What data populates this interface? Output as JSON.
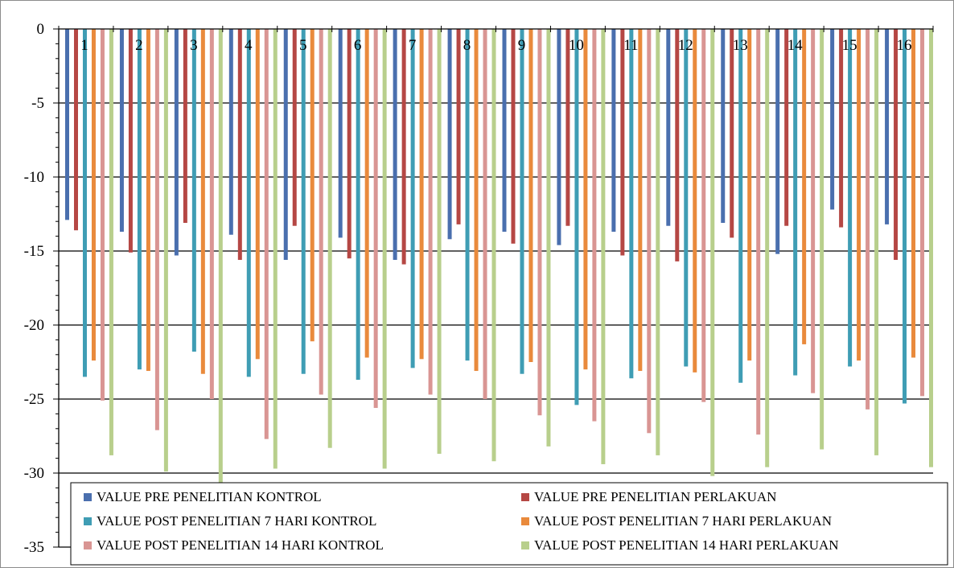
{
  "chart_data": {
    "type": "bar",
    "title": "",
    "xlabel": "",
    "ylabel": "",
    "ylim": [
      -35,
      0
    ],
    "y_ticks": [
      "0",
      "-5",
      "-10",
      "-15",
      "-20",
      "-25",
      "-30",
      "-35"
    ],
    "grid": true,
    "legend_position": "bottom",
    "categories": [
      "1",
      "2",
      "3",
      "4",
      "5",
      "6",
      "7",
      "8",
      "9",
      "10",
      "11",
      "12",
      "13",
      "14",
      "15",
      "16"
    ],
    "series": [
      {
        "name": "VALUE PRE PENELITIAN KONTROL",
        "color": "#4a6fae",
        "values": [
          -12.9,
          -13.7,
          -15.3,
          -13.9,
          -15.6,
          -14.1,
          -15.6,
          -14.2,
          -13.7,
          -14.6,
          -13.7,
          -13.3,
          -13.1,
          -15.2,
          -12.2,
          -13.2
        ]
      },
      {
        "name": "VALUE PRE PENELITIAN PERLAKUAN",
        "color": "#b54744",
        "values": [
          -13.6,
          -15.1,
          -13.1,
          -15.6,
          -13.3,
          -15.5,
          -15.9,
          -13.2,
          -14.5,
          -13.3,
          -15.3,
          -15.7,
          -14.1,
          -13.3,
          -13.4,
          -15.6
        ]
      },
      {
        "name": "VALUE POST PENELITIAN 7 HARI KONTROL",
        "color": "#3f9db4",
        "values": [
          -23.5,
          -23.0,
          -21.8,
          -23.5,
          -23.3,
          -23.7,
          -22.9,
          -22.4,
          -23.3,
          -25.4,
          -23.6,
          -22.8,
          -23.9,
          -23.4,
          -22.8,
          -25.3
        ]
      },
      {
        "name": "VALUE POST PENELITIAN 7 HARI PERLAKUAN",
        "color": "#e98a3c",
        "values": [
          -22.4,
          -23.1,
          -23.3,
          -22.3,
          -21.1,
          -22.2,
          -22.3,
          -23.1,
          -22.5,
          -23.0,
          -23.1,
          -23.2,
          -22.4,
          -21.3,
          -22.4,
          -22.2
        ]
      },
      {
        "name": "VALUE POST PENELITIAN 14 HARI KONTROL",
        "color": "#d99593",
        "values": [
          -25.1,
          -27.1,
          -25.0,
          -27.7,
          -24.7,
          -25.6,
          -24.7,
          -25.0,
          -26.1,
          -26.5,
          -27.3,
          -25.2,
          -27.4,
          -24.6,
          -25.7,
          -24.8
        ]
      },
      {
        "name": "VALUE POST PENELITIAN 14 HARI PERLAKUAN",
        "color": "#b8cf8c",
        "values": [
          -28.8,
          -29.9,
          -30.8,
          -29.7,
          -28.3,
          -29.7,
          -28.7,
          -29.2,
          -28.2,
          -29.4,
          -28.8,
          -30.2,
          -29.6,
          -28.4,
          -28.8,
          -29.6
        ]
      }
    ]
  }
}
